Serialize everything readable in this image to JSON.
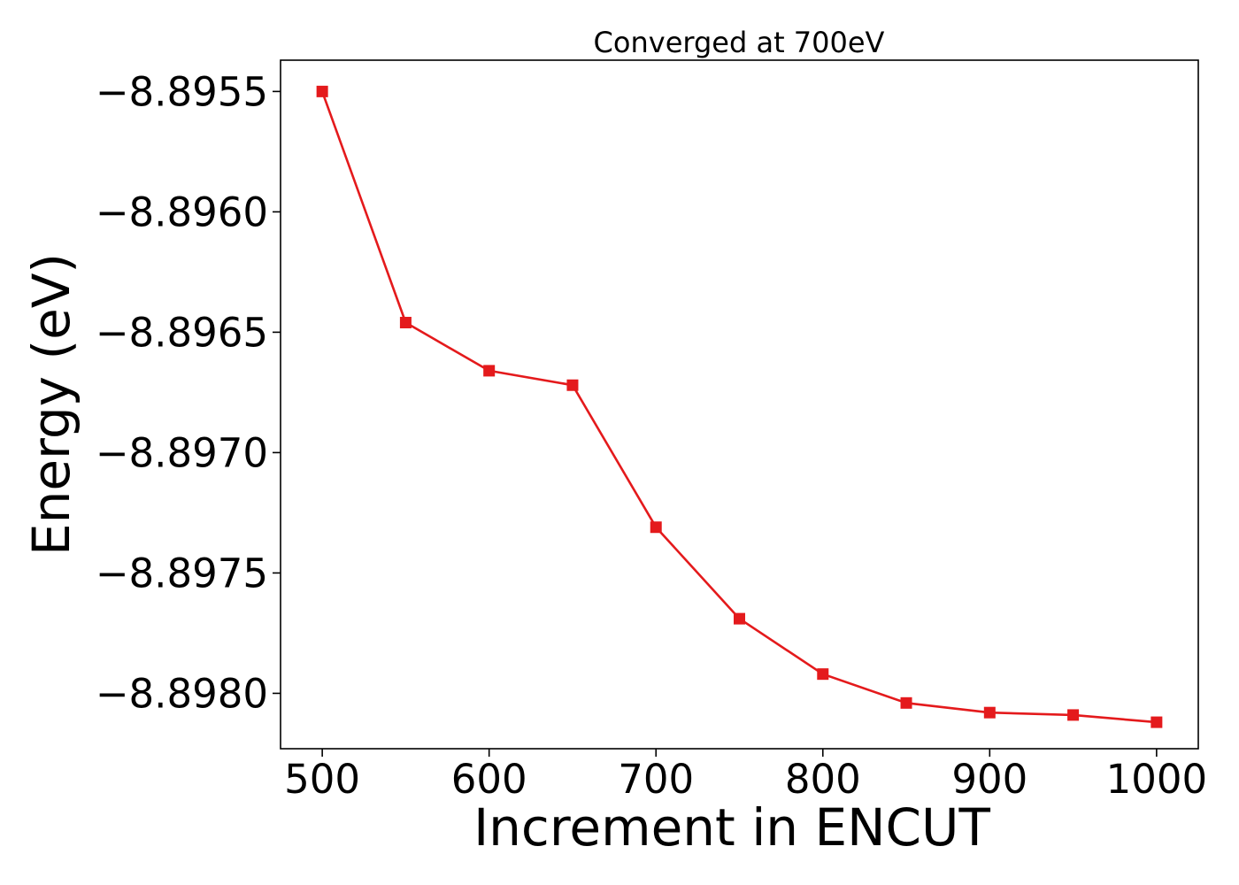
{
  "chart_data": {
    "type": "line",
    "title": "Converged at 700eV",
    "xlabel": "Increment in ENCUT",
    "ylabel": "Energy (eV)",
    "xlim": [
      475,
      1025
    ],
    "ylim": [
      -8.89823,
      -8.89537
    ],
    "x_ticks": [
      500,
      600,
      700,
      800,
      900,
      1000
    ],
    "x_tick_labels": [
      "500",
      "600",
      "700",
      "800",
      "900",
      "1000"
    ],
    "y_ticks": [
      -8.8955,
      -8.896,
      -8.8965,
      -8.897,
      -8.8975,
      -8.898
    ],
    "y_tick_labels": [
      "−8.8955",
      "−8.8960",
      "−8.8965",
      "−8.8970",
      "−8.8975",
      "−8.8980"
    ],
    "grid": false,
    "series": [
      {
        "color": "#e41a1c",
        "marker": "square",
        "x": [
          500,
          550,
          600,
          650,
          700,
          750,
          800,
          850,
          900,
          950,
          1000
        ],
        "y": [
          -8.8955,
          -8.89646,
          -8.89666,
          -8.89672,
          -8.89731,
          -8.89769,
          -8.89792,
          -8.89804,
          -8.89808,
          -8.89809,
          -8.89812
        ]
      }
    ]
  }
}
